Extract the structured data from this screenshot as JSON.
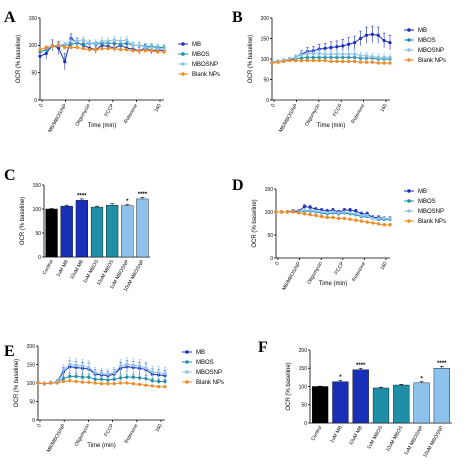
{
  "colors": {
    "MB": "#1a2fb8",
    "MBOS": "#1f8fa8",
    "MBOSNP": "#8cc2ec",
    "BlankNPs": "#f08a24",
    "Control": "#000000"
  },
  "panels": {
    "A": {
      "label": "A",
      "ylabel": "OCR (% baseline)",
      "xlabel": "Time (min)"
    },
    "B": {
      "label": "B",
      "ylabel": "OCR (% baseline)",
      "xlabel": "Time (min)"
    },
    "C": {
      "label": "C",
      "ylabel": "OCR (% baseline)"
    },
    "D": {
      "label": "D",
      "ylabel": "OCR (% baseline)",
      "xlabel": "Time (min)"
    },
    "E": {
      "label": "E",
      "ylabel": "OCR (% baseline)",
      "xlabel": "Time (min)"
    },
    "F": {
      "label": "F",
      "ylabel": "OCR (% baseline)"
    }
  },
  "chart_data": [
    {
      "panel": "A",
      "type": "line",
      "xlabel": "Time (min)",
      "ylabel": "OCR (% baseline)",
      "ylim": [
        0,
        150
      ],
      "yticks": [
        0,
        50,
        100,
        150
      ],
      "xticks": [
        "0",
        "MB/MBOS/NP",
        "Oligomycin",
        "FCCP",
        "Rotenone",
        "160"
      ],
      "xlim": [
        0,
        160
      ],
      "legend": "right",
      "x": [
        0,
        8,
        16,
        24,
        32,
        40,
        48,
        56,
        64,
        72,
        80,
        88,
        96,
        104,
        112,
        120,
        128,
        136,
        144,
        152,
        160
      ],
      "series": [
        {
          "name": "MB",
          "values": [
            80,
            85,
            100,
            95,
            70,
            113,
            105,
            100,
            95,
            92,
            100,
            98,
            95,
            100,
            95,
            93,
            90,
            95,
            90,
            92,
            90
          ],
          "err": [
            12,
            10,
            10,
            12,
            15,
            8,
            8,
            6,
            6,
            6,
            6,
            6,
            6,
            6,
            6,
            6,
            6,
            6,
            6,
            6,
            6
          ]
        },
        {
          "name": "MBOS",
          "values": [
            88,
            92,
            98,
            100,
            100,
            102,
            104,
            102,
            104,
            102,
            104,
            104,
            104,
            102,
            104,
            100,
            100,
            98,
            98,
            96,
            96
          ],
          "err": [
            4,
            4,
            4,
            4,
            4,
            5,
            5,
            5,
            5,
            5,
            5,
            5,
            5,
            5,
            5,
            5,
            5,
            5,
            5,
            5,
            5
          ]
        },
        {
          "name": "MBOSNP",
          "values": [
            92,
            95,
            98,
            100,
            102,
            108,
            108,
            110,
            104,
            104,
            108,
            108,
            110,
            108,
            110,
            100,
            100,
            96,
            96,
            94,
            94
          ],
          "err": [
            4,
            4,
            4,
            4,
            4,
            6,
            6,
            6,
            6,
            6,
            6,
            6,
            6,
            6,
            6,
            6,
            6,
            6,
            6,
            6,
            6
          ]
        },
        {
          "name": "Blank NPs",
          "values": [
            92,
            96,
            98,
            100,
            96,
            96,
            96,
            94,
            92,
            92,
            94,
            94,
            94,
            92,
            92,
            90,
            90,
            90,
            90,
            88,
            88
          ],
          "err": [
            3,
            3,
            3,
            3,
            3,
            3,
            3,
            3,
            3,
            3,
            3,
            3,
            3,
            3,
            3,
            3,
            3,
            3,
            3,
            3,
            3
          ]
        }
      ]
    },
    {
      "panel": "B",
      "type": "line",
      "xlabel": "Time (min)",
      "ylabel": "OCR (% baseline)",
      "ylim": [
        0,
        200
      ],
      "yticks": [
        0,
        50,
        100,
        150,
        200
      ],
      "xticks": [
        "0",
        "MB/MBOS/NP",
        "Oligomycin",
        "FCCP",
        "Rotenone",
        "160"
      ],
      "xlim": [
        0,
        160
      ],
      "legend": "right",
      "x": [
        0,
        8,
        16,
        24,
        32,
        40,
        48,
        56,
        64,
        72,
        80,
        88,
        96,
        104,
        112,
        120,
        128,
        136,
        144,
        152,
        160
      ],
      "series": [
        {
          "name": "MB",
          "values": [
            92,
            94,
            96,
            98,
            104,
            112,
            118,
            120,
            124,
            126,
            128,
            130,
            132,
            136,
            140,
            150,
            158,
            160,
            158,
            145,
            140
          ],
          "err": [
            4,
            4,
            4,
            5,
            6,
            8,
            10,
            10,
            12,
            12,
            14,
            14,
            16,
            16,
            16,
            18,
            20,
            20,
            20,
            18,
            18
          ]
        },
        {
          "name": "MBOS",
          "values": [
            92,
            94,
            96,
            98,
            100,
            102,
            104,
            104,
            104,
            104,
            104,
            104,
            104,
            104,
            104,
            102,
            102,
            102,
            100,
            100,
            100
          ],
          "err": [
            4,
            4,
            4,
            4,
            5,
            5,
            6,
            6,
            6,
            6,
            6,
            6,
            6,
            6,
            6,
            6,
            6,
            6,
            6,
            6,
            6
          ]
        },
        {
          "name": "MBOSNP",
          "values": [
            92,
            94,
            96,
            100,
            104,
            110,
            114,
            114,
            114,
            112,
            112,
            112,
            112,
            112,
            112,
            108,
            108,
            106,
            104,
            104,
            104
          ],
          "err": [
            4,
            4,
            4,
            4,
            6,
            8,
            10,
            10,
            10,
            10,
            10,
            10,
            10,
            10,
            10,
            8,
            8,
            8,
            8,
            8,
            8
          ]
        },
        {
          "name": "Blank NPs",
          "values": [
            90,
            92,
            94,
            96,
            96,
            96,
            96,
            96,
            96,
            96,
            94,
            94,
            94,
            94,
            94,
            92,
            92,
            92,
            90,
            90,
            90
          ],
          "err": [
            3,
            3,
            3,
            3,
            3,
            3,
            3,
            3,
            3,
            3,
            3,
            3,
            3,
            3,
            3,
            3,
            3,
            3,
            3,
            3,
            3
          ]
        }
      ]
    },
    {
      "panel": "C",
      "type": "bar",
      "ylabel": "OCR (% baseline)",
      "ylim": [
        0,
        150
      ],
      "yticks": [
        0,
        50,
        100,
        150
      ],
      "categories": [
        "Control",
        "1uM MB",
        "10uM MB",
        "1uM MBOS",
        "10uM MBOS",
        "1uM MBOSNP",
        "10uM MBOSNP"
      ],
      "values": [
        100,
        106,
        118,
        104,
        108,
        107,
        121
      ],
      "err": [
        1,
        2,
        3,
        2,
        3,
        2,
        3
      ],
      "annotations": [
        "",
        "",
        "****",
        "",
        "",
        "*",
        "****"
      ]
    },
    {
      "panel": "D",
      "type": "line",
      "xlabel": "Time (min)",
      "ylabel": "OCR (% baseline)",
      "ylim": [
        0,
        150
      ],
      "yticks": [
        0,
        50,
        100,
        150
      ],
      "xticks": [
        "0",
        "MB/MBOS/NP",
        "Oligomycin",
        "FCCP",
        "Rotenone",
        "160"
      ],
      "xlim": [
        0,
        160
      ],
      "legend": "right",
      "x": [
        0,
        8,
        16,
        24,
        32,
        40,
        48,
        56,
        64,
        72,
        80,
        88,
        96,
        104,
        112,
        120,
        128,
        136,
        144,
        152,
        160
      ],
      "series": [
        {
          "name": "MB",
          "values": [
            100,
            100,
            100,
            102,
            102,
            112,
            110,
            106,
            104,
            102,
            104,
            100,
            104,
            104,
            102,
            96,
            96,
            88,
            88,
            86,
            86
          ],
          "err": [
            3,
            3,
            3,
            3,
            3,
            4,
            4,
            4,
            4,
            4,
            4,
            4,
            4,
            4,
            4,
            4,
            4,
            4,
            4,
            4,
            4
          ]
        },
        {
          "name": "MBOS",
          "values": [
            100,
            100,
            100,
            100,
            100,
            102,
            102,
            100,
            98,
            96,
            98,
            96,
            98,
            96,
            94,
            90,
            90,
            86,
            84,
            84,
            84
          ],
          "err": [
            3,
            3,
            3,
            3,
            3,
            3,
            3,
            3,
            3,
            3,
            3,
            3,
            3,
            3,
            3,
            3,
            3,
            3,
            3,
            3,
            3
          ]
        },
        {
          "name": "MBOSNP",
          "values": [
            100,
            100,
            100,
            100,
            100,
            104,
            104,
            102,
            100,
            98,
            100,
            98,
            100,
            98,
            96,
            92,
            92,
            86,
            86,
            86,
            86
          ],
          "err": [
            3,
            3,
            3,
            3,
            3,
            3,
            3,
            3,
            3,
            3,
            3,
            3,
            3,
            3,
            3,
            3,
            3,
            3,
            3,
            3,
            3
          ]
        },
        {
          "name": "Blank NPs",
          "values": [
            100,
            100,
            100,
            100,
            98,
            96,
            94,
            92,
            90,
            88,
            88,
            86,
            86,
            84,
            82,
            80,
            78,
            76,
            74,
            72,
            72
          ],
          "err": [
            3,
            3,
            3,
            3,
            3,
            3,
            3,
            3,
            3,
            3,
            3,
            3,
            3,
            3,
            3,
            3,
            3,
            3,
            3,
            3,
            3
          ]
        }
      ]
    },
    {
      "panel": "E",
      "type": "line",
      "xlabel": "Time (min)",
      "ylabel": "OCR (% baseline)",
      "ylim": [
        0,
        200
      ],
      "yticks": [
        0,
        50,
        100,
        150,
        200
      ],
      "xticks": [
        "0",
        "MB/MBOS/NP",
        "Oligomycin",
        "FCCP",
        "Rotenone",
        "160"
      ],
      "xlim": [
        0,
        160
      ],
      "legend": "right",
      "x": [
        0,
        8,
        16,
        24,
        32,
        40,
        48,
        56,
        64,
        72,
        80,
        88,
        96,
        104,
        112,
        120,
        128,
        136,
        144,
        152,
        160
      ],
      "series": [
        {
          "name": "MB",
          "values": [
            100,
            98,
            100,
            102,
            130,
            144,
            142,
            140,
            138,
            124,
            122,
            120,
            124,
            140,
            144,
            142,
            140,
            136,
            124,
            122,
            120
          ],
          "err": [
            5,
            5,
            5,
            6,
            12,
            16,
            16,
            16,
            16,
            12,
            12,
            12,
            12,
            16,
            16,
            16,
            16,
            16,
            14,
            14,
            14
          ]
        },
        {
          "name": "MBOS",
          "values": [
            100,
            98,
            100,
            102,
            112,
            118,
            118,
            116,
            116,
            110,
            110,
            108,
            110,
            114,
            116,
            116,
            114,
            112,
            106,
            104,
            104
          ],
          "err": [
            4,
            4,
            4,
            4,
            6,
            8,
            8,
            8,
            8,
            6,
            6,
            6,
            6,
            8,
            8,
            8,
            8,
            8,
            6,
            6,
            6
          ]
        },
        {
          "name": "MBOSNP",
          "values": [
            100,
            98,
            100,
            104,
            136,
            150,
            148,
            146,
            142,
            128,
            126,
            124,
            128,
            146,
            150,
            148,
            146,
            140,
            130,
            128,
            126
          ],
          "err": [
            5,
            5,
            5,
            6,
            14,
            18,
            18,
            18,
            18,
            14,
            14,
            14,
            14,
            18,
            18,
            18,
            18,
            18,
            16,
            16,
            16
          ]
        },
        {
          "name": "Blank NPs",
          "values": [
            100,
            98,
            100,
            100,
            104,
            106,
            104,
            102,
            102,
            100,
            98,
            98,
            98,
            100,
            100,
            98,
            96,
            94,
            92,
            90,
            90
          ],
          "err": [
            3,
            3,
            3,
            3,
            3,
            3,
            3,
            3,
            3,
            3,
            3,
            3,
            3,
            3,
            3,
            3,
            3,
            3,
            3,
            3,
            3
          ]
        }
      ]
    },
    {
      "panel": "F",
      "type": "bar",
      "ylabel": "OCR (% baseline)",
      "ylim": [
        0,
        200
      ],
      "yticks": [
        0,
        50,
        100,
        150,
        200
      ],
      "categories": [
        "Control",
        "1uM MB",
        "10uM MB",
        "1uM MBOS",
        "10uM MBOS",
        "1uM MBOSNP",
        "10uM MBOSNP"
      ],
      "values": [
        100,
        113,
        146,
        96,
        104,
        110,
        150
      ],
      "err": [
        1,
        3,
        4,
        2,
        2,
        3,
        5
      ],
      "annotations": [
        "",
        "*",
        "****",
        "",
        "",
        "*",
        "****"
      ]
    }
  ]
}
